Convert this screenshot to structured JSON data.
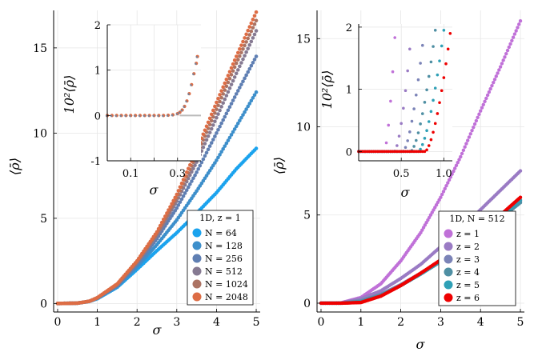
{
  "figure": {
    "layout": "1x2 panels, each with inset"
  },
  "chart_data": [
    {
      "panel": "left",
      "type": "scatter",
      "xlabel": "σ",
      "ylabel": "⟨ρ̄⟩",
      "xlim": [
        -0.1,
        5.1
      ],
      "ylim": [
        -0.5,
        17.2
      ],
      "xticks": [
        0,
        1,
        2,
        3,
        4,
        5
      ],
      "yticks": [
        0,
        5,
        10,
        15
      ],
      "grid": true,
      "legend_title": "1D, z = 1",
      "legend_placement": "bottom-right",
      "series": [
        {
          "name": "N = 64",
          "color": "#1ba3ee",
          "pts": [
            [
              0,
              0
            ],
            [
              0.5,
              0.02
            ],
            [
              0.8,
              0.12
            ],
            [
              1,
              0.28
            ],
            [
              1.5,
              0.95
            ],
            [
              2,
              2.0
            ],
            [
              2.5,
              3.1
            ],
            [
              3,
              4.15
            ],
            [
              3.5,
              5.3
            ],
            [
              4,
              6.5
            ],
            [
              4.5,
              7.9
            ],
            [
              5,
              9.1
            ]
          ]
        },
        {
          "name": "N = 128",
          "color": "#3d8fcb",
          "pts": [
            [
              0,
              0
            ],
            [
              0.5,
              0.02
            ],
            [
              0.8,
              0.12
            ],
            [
              1,
              0.3
            ],
            [
              1.5,
              1.0
            ],
            [
              2,
              2.15
            ],
            [
              2.5,
              3.45
            ],
            [
              3,
              4.9
            ],
            [
              3.5,
              6.6
            ],
            [
              4,
              8.4
            ],
            [
              4.5,
              10.4
            ],
            [
              5,
              12.4
            ]
          ]
        },
        {
          "name": "N = 256",
          "color": "#5f7fb3",
          "pts": [
            [
              0,
              0
            ],
            [
              0.5,
              0.02
            ],
            [
              0.8,
              0.13
            ],
            [
              1,
              0.32
            ],
            [
              1.5,
              1.05
            ],
            [
              2,
              2.3
            ],
            [
              2.5,
              3.8
            ],
            [
              3,
              5.6
            ],
            [
              3.5,
              7.7
            ],
            [
              4,
              10.0
            ],
            [
              4.5,
              12.3
            ],
            [
              5,
              14.5
            ]
          ]
        },
        {
          "name": "N = 512",
          "color": "#867a92",
          "pts": [
            [
              0,
              0
            ],
            [
              0.5,
              0.02
            ],
            [
              0.8,
              0.13
            ],
            [
              1,
              0.33
            ],
            [
              1.5,
              1.1
            ],
            [
              2,
              2.4
            ],
            [
              2.5,
              4.0
            ],
            [
              3,
              6.0
            ],
            [
              3.5,
              8.3
            ],
            [
              4,
              10.9
            ],
            [
              4.5,
              13.5
            ],
            [
              5,
              16.0
            ]
          ]
        },
        {
          "name": "N = 1024",
          "color": "#ac7363",
          "pts": [
            [
              0,
              0
            ],
            [
              0.5,
              0.02
            ],
            [
              0.8,
              0.13
            ],
            [
              1,
              0.33
            ],
            [
              1.5,
              1.12
            ],
            [
              2,
              2.45
            ],
            [
              2.5,
              4.1
            ],
            [
              3,
              6.2
            ],
            [
              3.5,
              8.7
            ],
            [
              4,
              11.4
            ],
            [
              4.5,
              14.1
            ],
            [
              5,
              16.6
            ]
          ]
        },
        {
          "name": "N = 2048",
          "color": "#dd6d45",
          "pts": [
            [
              0,
              0
            ],
            [
              0.5,
              0.02
            ],
            [
              0.8,
              0.13
            ],
            [
              1,
              0.34
            ],
            [
              1.5,
              1.15
            ],
            [
              2,
              2.5
            ],
            [
              2.5,
              4.2
            ],
            [
              3,
              6.4
            ],
            [
              3.5,
              9.0
            ],
            [
              4,
              11.8
            ],
            [
              4.5,
              14.5
            ],
            [
              5,
              17.1
            ]
          ]
        }
      ],
      "inset": {
        "xlabel": "σ",
        "ylabel": "10²⟨ρ̄⟩",
        "xlim": [
          0,
          0.4
        ],
        "ylim": [
          -1,
          2
        ],
        "xticks": [
          0.1,
          0.2,
          0.3
        ],
        "xtick_labels": [
          "0.1",
          "",
          "0.3"
        ],
        "yticks": [
          -1,
          0,
          1,
          2
        ],
        "grid": true,
        "pts": [
          [
            0.0,
            0
          ],
          [
            0.02,
            0
          ],
          [
            0.04,
            0
          ],
          [
            0.06,
            0
          ],
          [
            0.08,
            0
          ],
          [
            0.1,
            0
          ],
          [
            0.12,
            0
          ],
          [
            0.14,
            0
          ],
          [
            0.16,
            0
          ],
          [
            0.18,
            0
          ],
          [
            0.2,
            0
          ],
          [
            0.22,
            0
          ],
          [
            0.24,
            0
          ],
          [
            0.26,
            0.005
          ],
          [
            0.28,
            0.015
          ],
          [
            0.3,
            0.04
          ],
          [
            0.31,
            0.07
          ],
          [
            0.32,
            0.12
          ],
          [
            0.33,
            0.2
          ],
          [
            0.34,
            0.32
          ],
          [
            0.35,
            0.48
          ],
          [
            0.36,
            0.68
          ],
          [
            0.37,
            0.92
          ],
          [
            0.38,
            1.15
          ],
          [
            0.385,
            1.3
          ]
        ]
      }
    },
    {
      "panel": "right",
      "type": "scatter",
      "xlabel": "σ",
      "ylabel": "⟨ρ̄⟩",
      "xlim": [
        -0.1,
        5.1
      ],
      "ylim": [
        -0.5,
        16.6
      ],
      "xticks": [
        0,
        1,
        2,
        3,
        4,
        5
      ],
      "yticks": [
        0,
        5,
        10,
        15
      ],
      "grid": true,
      "legend_title": "1D, N = 512",
      "legend_placement": "bottom-right",
      "series": [
        {
          "name": "z = 1",
          "color": "#c071d8",
          "pts": [
            [
              0,
              0
            ],
            [
              0.5,
              0.02
            ],
            [
              1,
              0.32
            ],
            [
              1.5,
              1.1
            ],
            [
              2,
              2.4
            ],
            [
              2.5,
              4.0
            ],
            [
              3,
              6.0
            ],
            [
              3.5,
              8.3
            ],
            [
              4,
              10.9
            ],
            [
              4.5,
              13.4
            ],
            [
              5,
              16.0
            ]
          ]
        },
        {
          "name": "z = 2",
          "color": "#9a7bc4",
          "pts": [
            [
              0,
              0
            ],
            [
              0.5,
              0
            ],
            [
              1,
              0.25
            ],
            [
              1.5,
              0.7
            ],
            [
              2,
              1.4
            ],
            [
              2.5,
              2.2
            ],
            [
              3,
              3.2
            ],
            [
              3.5,
              4.2
            ],
            [
              4,
              5.3
            ],
            [
              4.5,
              6.4
            ],
            [
              5,
              7.5
            ]
          ]
        },
        {
          "name": "z = 3",
          "color": "#7b83b7",
          "pts": [
            [
              0,
              0
            ],
            [
              0.5,
              0
            ],
            [
              1,
              0.15
            ],
            [
              1.5,
              0.5
            ],
            [
              2,
              1.05
            ],
            [
              2.5,
              1.7
            ],
            [
              3,
              2.4
            ],
            [
              3.5,
              3.15
            ],
            [
              4,
              3.95
            ],
            [
              4.5,
              4.85
            ],
            [
              5,
              5.8
            ]
          ]
        },
        {
          "name": "z = 4",
          "color": "#4f8fa3",
          "pts": [
            [
              0,
              0
            ],
            [
              0.5,
              0
            ],
            [
              1,
              0.1
            ],
            [
              1.5,
              0.45
            ],
            [
              2,
              1.0
            ],
            [
              2.5,
              1.65
            ],
            [
              3,
              2.35
            ],
            [
              3.5,
              3.1
            ],
            [
              4,
              3.9
            ],
            [
              4.5,
              4.8
            ],
            [
              5,
              5.7
            ]
          ]
        },
        {
          "name": "z = 5",
          "color": "#2fa0b6",
          "pts": [
            [
              0,
              0
            ],
            [
              0.5,
              0
            ],
            [
              1,
              0.06
            ],
            [
              1.5,
              0.42
            ],
            [
              2,
              1.0
            ],
            [
              2.5,
              1.65
            ],
            [
              3,
              2.38
            ],
            [
              3.5,
              3.15
            ],
            [
              4,
              3.98
            ],
            [
              4.5,
              4.88
            ],
            [
              5,
              5.85
            ]
          ]
        },
        {
          "name": "z = 6",
          "color": "#ee0000",
          "pts": [
            [
              0,
              0
            ],
            [
              0.5,
              0
            ],
            [
              1,
              0.04
            ],
            [
              1.5,
              0.4
            ],
            [
              2,
              1.0
            ],
            [
              2.5,
              1.7
            ],
            [
              3,
              2.45
            ],
            [
              3.5,
              3.25
            ],
            [
              4,
              4.1
            ],
            [
              4.5,
              5.0
            ],
            [
              5,
              6.0
            ]
          ]
        }
      ],
      "inset": {
        "xlabel": "σ",
        "ylabel": "10²⟨ρ̄⟩",
        "xlim": [
          0,
          1.1
        ],
        "ylim": [
          -0.15,
          2.05
        ],
        "xticks": [
          0.5,
          1.0
        ],
        "xtick_labels": [
          "0.5",
          "1.0"
        ],
        "yticks": [
          0,
          1,
          2
        ],
        "grid": true,
        "onsets": [
          0.3,
          0.42,
          0.52,
          0.61,
          0.7,
          0.78
        ],
        "caps": [
          0.43,
          0.62,
          0.77,
          0.9,
          1.0,
          1.08
        ]
      }
    }
  ]
}
